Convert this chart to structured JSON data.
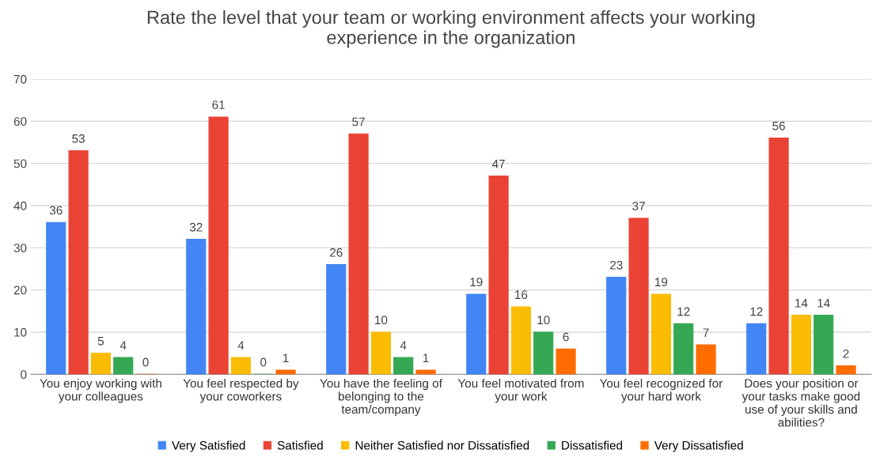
{
  "chart_data": {
    "type": "bar",
    "title": "Rate the level that your team or working environment affects your working\nexperience in the organization",
    "categories": [
      "You enjoy working with\nyour colleagues",
      "You feel respected by\nyour coworkers",
      "You have the feeling of\nbelonging to the\nteam/company",
      "You feel motivated from\nyour work",
      "You feel recognized for\nyour hard work",
      "Does your position or\nyour tasks make good\nuse of your skills and\nabilities?"
    ],
    "series": [
      {
        "name": "Very Satisfied",
        "color": "#4285f4",
        "values": [
          36,
          32,
          26,
          19,
          23,
          12
        ]
      },
      {
        "name": "Satisfied",
        "color": "#ea4335",
        "values": [
          53,
          61,
          57,
          47,
          37,
          56
        ]
      },
      {
        "name": "Neither Satisfied nor Dissatisfied",
        "color": "#fbbc04",
        "values": [
          5,
          4,
          10,
          16,
          19,
          14
        ]
      },
      {
        "name": "Dissatisfied",
        "color": "#34a853",
        "values": [
          4,
          0,
          4,
          10,
          12,
          14
        ]
      },
      {
        "name": "Very Dissatisfied",
        "color": "#ff6d01",
        "values": [
          0,
          1,
          1,
          6,
          7,
          2
        ]
      }
    ],
    "ylim": [
      0,
      70
    ],
    "yticks": [
      0,
      10,
      20,
      30,
      40,
      50,
      60,
      70
    ],
    "grid": "y",
    "legend": "bottom",
    "data_labels": true
  }
}
